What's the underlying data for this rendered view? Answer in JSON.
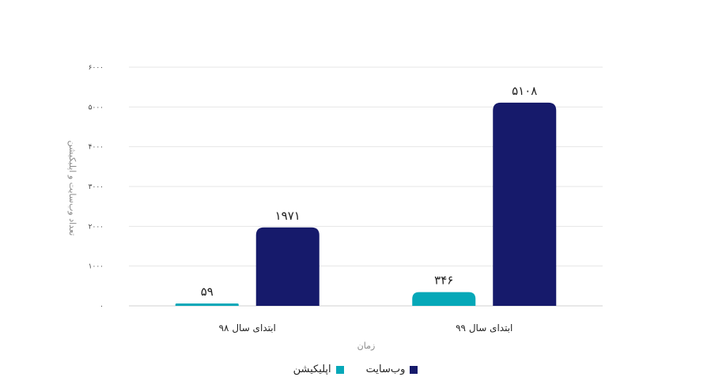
{
  "chart_data": {
    "type": "bar",
    "title": "",
    "xlabel": "زمان",
    "ylabel": "تعداد وب‌سایت و اپلیکیشن",
    "categories": [
      "ابتدای سال ۹۸",
      "ابتدای سال ۹۹"
    ],
    "series": [
      {
        "name": "اپلیکیشن",
        "values": [
          59,
          346
        ],
        "value_labels": [
          "۵۹",
          "۳۴۶"
        ],
        "color": "#06a8b8"
      },
      {
        "name": "وب‌سایت",
        "values": [
          1971,
          5108
        ],
        "value_labels": [
          "۱۹۷۱",
          "۵۱۰۸"
        ],
        "color": "#161a6b"
      }
    ],
    "ylim": [
      0,
      6000
    ],
    "yticks": [
      {
        "value": 0,
        "label": "۰"
      },
      {
        "value": 1000,
        "label": "۱۰۰۰"
      },
      {
        "value": 2000,
        "label": "۲۰۰۰"
      },
      {
        "value": 3000,
        "label": "۳۰۰۰"
      },
      {
        "value": 4000,
        "label": "۴۰۰۰"
      },
      {
        "value": 5000,
        "label": "۵۰۰۰"
      },
      {
        "value": 6000,
        "label": "۶۰۰۰"
      }
    ],
    "grid": true,
    "legend_position": "bottom-center"
  }
}
